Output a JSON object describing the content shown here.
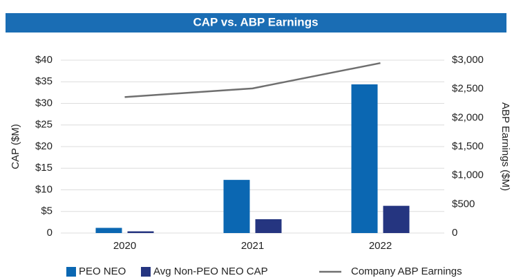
{
  "chart_data": {
    "type": "bar",
    "title": "CAP vs. ABP Earnings",
    "ylabel": "CAP ($M)",
    "y2label": "ABP Earnings ($M)",
    "categories": [
      "2020",
      "2021",
      "2022"
    ],
    "series": [
      {
        "name": "PEO NEO",
        "color": "#0b67b2",
        "values": [
          1.2,
          12.3,
          34.4
        ]
      },
      {
        "name": "Avg Non-PEO NEO CAP",
        "color": "#253580",
        "values": [
          0.4,
          3.2,
          6.3
        ]
      },
      {
        "name": "Company ABP Earnings",
        "color": "#6f6f6f",
        "type": "line",
        "axis": "y2",
        "values": [
          2360,
          2510,
          2950
        ]
      }
    ],
    "ylim": [
      0,
      40
    ],
    "yticks": [
      0,
      {
        "value": 5,
        "label": "$5"
      },
      {
        "value": 10,
        "label": "$10"
      },
      {
        "value": 15,
        "label": "$15"
      },
      {
        "value": 20,
        "label": "$20"
      },
      {
        "value": 25,
        "label": "$25"
      },
      {
        "value": 30,
        "label": "$30"
      },
      {
        "value": 35,
        "label": "$35"
      },
      {
        "value": 40,
        "label": "$40"
      }
    ],
    "y2lim": [
      0,
      3000
    ],
    "y2ticks": [
      0,
      {
        "value": 500,
        "label": "$500"
      },
      {
        "value": 1000,
        "label": "$1,000"
      },
      {
        "value": 1500,
        "label": "$1,500"
      },
      {
        "value": 2000,
        "label": "$2,000"
      },
      {
        "value": 2500,
        "label": "$2,500"
      },
      {
        "value": 3000,
        "label": "$3,000"
      }
    ],
    "grid": true,
    "legend": "bottom"
  }
}
